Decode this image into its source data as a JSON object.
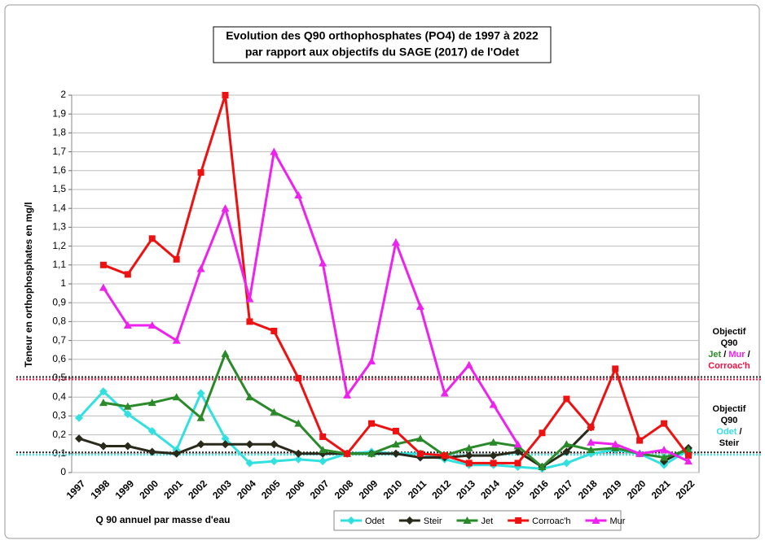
{
  "chart_data": {
    "type": "line",
    "title": [
      "Evolution des Q90 orthophosphates (PO4) de 1997 à 2022",
      "par rapport aux objectifs du SAGE (2017) de l'Odet"
    ],
    "y_label": "Teneur en orthophosphates en mg/l",
    "x_label": "Q 90 annuel par masse d'eau",
    "categories": [
      "1997",
      "1998",
      "1999",
      "2000",
      "2001",
      "2002",
      "2003",
      "2004",
      "2005",
      "2006",
      "2007",
      "2008",
      "2009",
      "2010",
      "2011",
      "2012",
      "2013",
      "2014",
      "2015",
      "2016",
      "2017",
      "2018",
      "2019",
      "2020",
      "2021",
      "2022"
    ],
    "series": [
      {
        "name": "Odet",
        "color": "#33e0e0",
        "marker": "diamond",
        "values": [
          0.29,
          0.43,
          0.31,
          0.22,
          0.12,
          0.42,
          0.18,
          0.05,
          0.06,
          0.07,
          0.06,
          0.1,
          0.11,
          0.1,
          0.1,
          0.07,
          0.04,
          0.04,
          0.03,
          0.02,
          0.05,
          0.1,
          0.12,
          0.1,
          0.04,
          0.12
        ]
      },
      {
        "name": "Steir",
        "color": "#2a2a1a",
        "marker": "diamond",
        "values": [
          0.18,
          0.14,
          0.14,
          0.11,
          0.1,
          0.15,
          0.15,
          0.15,
          0.15,
          0.1,
          0.1,
          0.1,
          0.1,
          0.1,
          0.08,
          0.08,
          0.09,
          0.09,
          0.11,
          0.03,
          0.11,
          0.24,
          null,
          null,
          0.06,
          0.13
        ]
      },
      {
        "name": "Jet",
        "color": "#2a8a2a",
        "marker": "triangle",
        "values": [
          null,
          0.37,
          0.35,
          0.37,
          0.4,
          0.29,
          0.63,
          0.4,
          0.32,
          0.26,
          0.12,
          0.1,
          0.1,
          0.15,
          0.18,
          0.09,
          0.13,
          0.16,
          0.14,
          0.03,
          0.15,
          0.12,
          0.13,
          0.1,
          0.08,
          0.12
        ]
      },
      {
        "name": "Corroac'h",
        "color": "#ee1111",
        "marker": "square",
        "values": [
          null,
          1.1,
          1.05,
          1.24,
          1.13,
          1.59,
          2.0,
          0.8,
          0.75,
          0.5,
          0.19,
          0.1,
          0.26,
          0.22,
          0.1,
          0.09,
          0.05,
          0.05,
          0.05,
          0.21,
          0.39,
          0.24,
          0.55,
          0.17,
          0.26,
          0.09
        ]
      },
      {
        "name": "Mur",
        "color": "#ee22ee",
        "marker": "triangle",
        "values": [
          null,
          0.98,
          0.78,
          0.78,
          0.7,
          1.08,
          1.4,
          0.92,
          1.7,
          1.47,
          1.11,
          0.41,
          0.59,
          1.22,
          0.88,
          0.42,
          0.57,
          0.36,
          0.15,
          null,
          null,
          0.16,
          0.15,
          0.1,
          0.12,
          0.06
        ]
      }
    ],
    "ylim": [
      0,
      2
    ],
    "yticks": [
      0,
      {
        "value": 0.1,
        "label": "0,1"
      },
      {
        "value": 0.2,
        "label": "0,2"
      },
      {
        "value": 0.3,
        "label": "0,3"
      },
      {
        "value": 0.4,
        "label": "0,4"
      },
      {
        "value": 0.5,
        "label": "0,5"
      },
      {
        "value": 0.6,
        "label": "0,6"
      },
      {
        "value": 0.7,
        "label": "0,7"
      },
      {
        "value": 0.8,
        "label": "0,8"
      },
      {
        "value": 0.9,
        "label": "0,9"
      },
      1,
      {
        "value": 1.1,
        "label": "1,1"
      },
      {
        "value": 1.2,
        "label": "1,2"
      },
      {
        "value": 1.3,
        "label": "1,3"
      },
      {
        "value": 1.4,
        "label": "1,4"
      },
      {
        "value": 1.5,
        "label": "1,5"
      },
      {
        "value": 1.6,
        "label": "1,6"
      },
      {
        "value": 1.7,
        "label": "1,7"
      },
      {
        "value": 1.8,
        "label": "1,8"
      },
      {
        "value": 1.9,
        "label": "1,9"
      },
      2
    ],
    "grid": true,
    "legend": "bottom",
    "reference_lines": [
      {
        "value": 0.5,
        "colors": [
          "#222222",
          "#ee1144"
        ]
      },
      {
        "value": 0.1,
        "colors": [
          "#222222",
          "#33e0e0"
        ]
      }
    ],
    "annotations": [
      {
        "lines": [
          [
            {
              "text": "Objectif",
              "color": "#000000"
            }
          ],
          [
            {
              "text": "Q90",
              "color": "#000000"
            }
          ],
          [
            {
              "text": "Jet",
              "color": "#2a8a2a"
            },
            {
              "text": " / ",
              "color": "#000000"
            },
            {
              "text": "Mur",
              "color": "#ee22ee"
            },
            {
              "text": " /",
              "color": "#000000"
            }
          ],
          [
            {
              "text": "Corroac'h",
              "color": "#ee1144"
            }
          ]
        ]
      },
      {
        "lines": [
          [
            {
              "text": "Objectif",
              "color": "#000000"
            }
          ],
          [
            {
              "text": "Q90",
              "color": "#000000"
            }
          ],
          [
            {
              "text": "Odet",
              "color": "#33e0e0"
            },
            {
              "text": " /",
              "color": "#000000"
            }
          ],
          [
            {
              "text": "Steir",
              "color": "#000000"
            }
          ]
        ]
      }
    ]
  }
}
